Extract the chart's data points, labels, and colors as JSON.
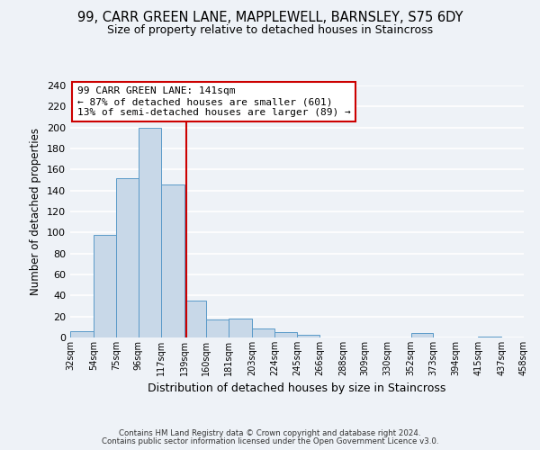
{
  "title_line1": "99, CARR GREEN LANE, MAPPLEWELL, BARNSLEY, S75 6DY",
  "title_line2": "Size of property relative to detached houses in Staincross",
  "xlabel": "Distribution of detached houses by size in Staincross",
  "ylabel": "Number of detached properties",
  "bin_edges": [
    32,
    54,
    75,
    96,
    117,
    139,
    160,
    181,
    203,
    224,
    245,
    266,
    288,
    309,
    330,
    352,
    373,
    394,
    415,
    437,
    458
  ],
  "bin_labels": [
    "32sqm",
    "54sqm",
    "75sqm",
    "96sqm",
    "117sqm",
    "139sqm",
    "160sqm",
    "181sqm",
    "203sqm",
    "224sqm",
    "245sqm",
    "266sqm",
    "288sqm",
    "309sqm",
    "330sqm",
    "352sqm",
    "373sqm",
    "394sqm",
    "415sqm",
    "437sqm",
    "458sqm"
  ],
  "counts": [
    6,
    98,
    152,
    200,
    146,
    35,
    17,
    18,
    9,
    5,
    3,
    0,
    0,
    0,
    0,
    4,
    0,
    0,
    1,
    0
  ],
  "bar_color": "#c8d8e8",
  "bar_edge_color": "#5a9ac8",
  "vline_x": 141,
  "vline_color": "#cc0000",
  "ylim": [
    0,
    240
  ],
  "yticks": [
    0,
    20,
    40,
    60,
    80,
    100,
    120,
    140,
    160,
    180,
    200,
    220,
    240
  ],
  "annotation_title": "99 CARR GREEN LANE: 141sqm",
  "annotation_line1": "← 87% of detached houses are smaller (601)",
  "annotation_line2": "13% of semi-detached houses are larger (89) →",
  "annotation_box_color": "#ffffff",
  "annotation_box_edge": "#cc0000",
  "footer_line1": "Contains HM Land Registry data © Crown copyright and database right 2024.",
  "footer_line2": "Contains public sector information licensed under the Open Government Licence v3.0.",
  "bg_color": "#eef2f7"
}
